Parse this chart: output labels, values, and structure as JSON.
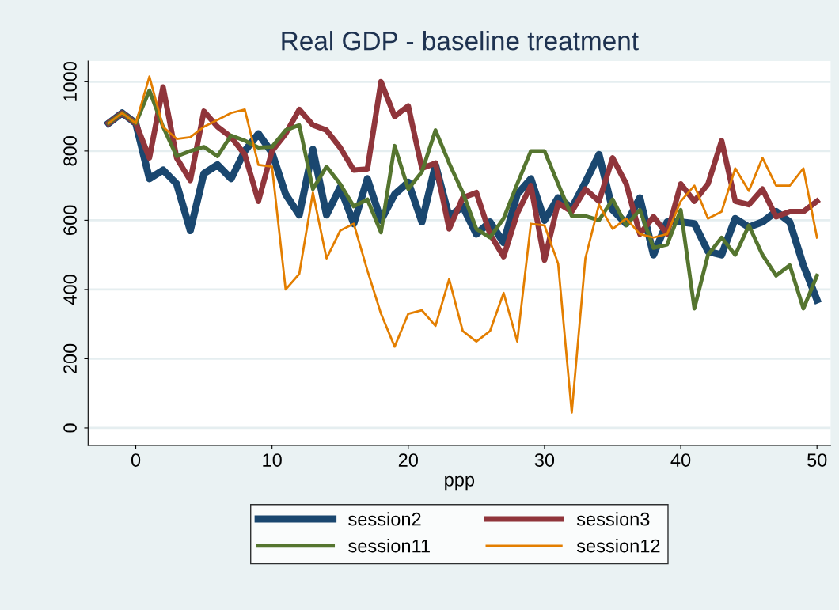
{
  "chart_data": {
    "type": "line",
    "title": "Real GDP - baseline treatment",
    "xlabel": "ppp",
    "x": [
      -2,
      -1,
      0,
      1,
      2,
      3,
      4,
      5,
      6,
      7,
      8,
      9,
      10,
      11,
      12,
      13,
      14,
      15,
      16,
      17,
      18,
      19,
      20,
      21,
      22,
      23,
      24,
      25,
      26,
      27,
      28,
      29,
      30,
      31,
      32,
      33,
      34,
      35,
      36,
      37,
      38,
      39,
      40,
      41,
      42,
      43,
      44,
      45,
      46,
      47,
      48,
      49,
      50
    ],
    "series": [
      {
        "name": "session2",
        "color": "#1a476f",
        "values": [
          880,
          910,
          880,
          720,
          745,
          705,
          570,
          735,
          760,
          720,
          800,
          850,
          795,
          675,
          615,
          805,
          615,
          695,
          590,
          720,
          600,
          675,
          710,
          595,
          760,
          610,
          640,
          560,
          595,
          535,
          675,
          720,
          600,
          665,
          635,
          710,
          790,
          630,
          590,
          665,
          500,
          595,
          595,
          590,
          510,
          500,
          605,
          580,
          595,
          625,
          595,
          470,
          370
        ]
      },
      {
        "name": "session3",
        "color": "#90353b",
        "values": [
          880,
          910,
          880,
          780,
          985,
          780,
          715,
          915,
          870,
          840,
          790,
          655,
          800,
          850,
          920,
          875,
          860,
          810,
          745,
          748,
          1000,
          900,
          930,
          750,
          765,
          575,
          665,
          680,
          560,
          495,
          620,
          700,
          485,
          650,
          625,
          690,
          655,
          780,
          705,
          560,
          610,
          560,
          705,
          655,
          705,
          830,
          655,
          645,
          690,
          610,
          625,
          625,
          655
        ]
      },
      {
        "name": "session11",
        "color": "#55752f",
        "values": [
          880,
          910,
          880,
          975,
          870,
          785,
          800,
          812,
          785,
          845,
          830,
          810,
          812,
          860,
          875,
          690,
          755,
          705,
          640,
          660,
          565,
          815,
          690,
          740,
          860,
          765,
          680,
          575,
          550,
          605,
          705,
          800,
          800,
          705,
          612,
          612,
          600,
          660,
          585,
          630,
          520,
          530,
          630,
          345,
          500,
          550,
          500,
          585,
          500,
          440,
          470,
          345,
          440
        ]
      },
      {
        "name": "session12",
        "color": "#e37e00",
        "values": [
          880,
          910,
          880,
          1015,
          870,
          835,
          840,
          870,
          890,
          910,
          920,
          760,
          755,
          400,
          445,
          680,
          490,
          570,
          590,
          455,
          330,
          235,
          330,
          340,
          295,
          430,
          280,
          250,
          280,
          390,
          250,
          590,
          585,
          475,
          45,
          490,
          645,
          575,
          605,
          560,
          550,
          560,
          655,
          700,
          605,
          625,
          750,
          685,
          780,
          700,
          700,
          750,
          550
        ]
      }
    ],
    "xlim": [
      -3.5,
      51
    ],
    "ylim": [
      -50,
      1060
    ],
    "xticks": [
      0,
      10,
      20,
      30,
      40,
      50
    ],
    "yticks": [
      0,
      200,
      400,
      600,
      800,
      1000
    ],
    "grid": "y",
    "legend": "bottom",
    "line_style": "solid",
    "marker": "none"
  }
}
